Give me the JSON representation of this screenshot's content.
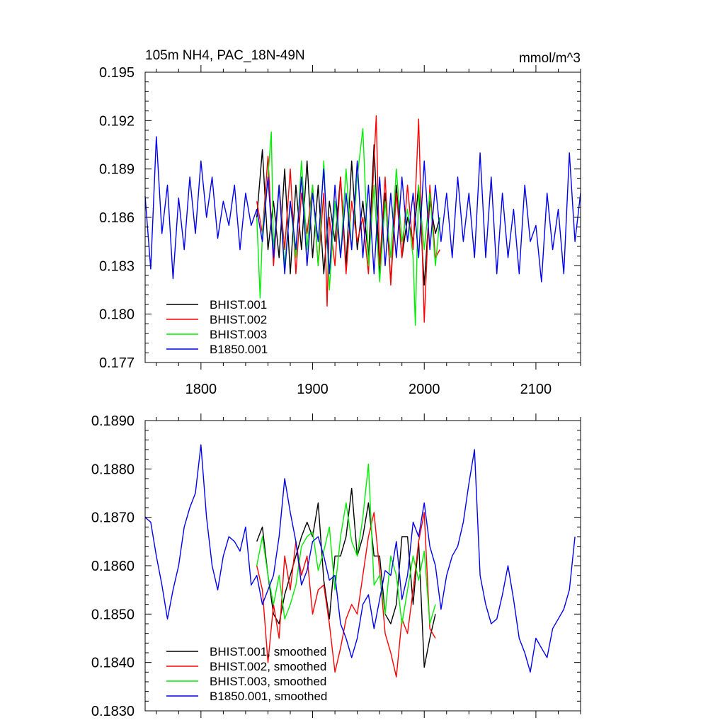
{
  "chart_data": [
    {
      "type": "line",
      "title": "105m NH4, PAC_18N-49N",
      "units": "mmol/m^3",
      "xlabel": "",
      "ylabel": "",
      "xlim": [
        1750,
        2140
      ],
      "ylim": [
        0.177,
        0.195
      ],
      "x_ticks": [
        1800,
        1900,
        2000,
        2100
      ],
      "x_tick_labels": [
        "1800",
        "1900",
        "2000",
        "2100"
      ],
      "y_ticks": [
        0.177,
        0.18,
        0.183,
        0.186,
        0.189,
        0.192,
        0.195
      ],
      "y_tick_labels": [
        "0.177",
        "0.180",
        "0.183",
        "0.186",
        "0.189",
        "0.192",
        "0.195"
      ],
      "grid": false,
      "legend_position": "bottom-left",
      "series": [
        {
          "name": "BHIST.001",
          "color": "#000000",
          "x": [
            1850,
            1855,
            1860,
            1865,
            1870,
            1875,
            1880,
            1885,
            1890,
            1895,
            1900,
            1905,
            1910,
            1915,
            1920,
            1925,
            1930,
            1935,
            1940,
            1945,
            1950,
            1955,
            1960,
            1965,
            1970,
            1975,
            1980,
            1985,
            1990,
            1995,
            2000,
            2005,
            2010,
            2014
          ],
          "y": [
            0.186,
            0.1902,
            0.184,
            0.187,
            0.1835,
            0.189,
            0.1825,
            0.188,
            0.184,
            0.1895,
            0.1835,
            0.188,
            0.1825,
            0.187,
            0.1845,
            0.1885,
            0.183,
            0.1895,
            0.184,
            0.187,
            0.1835,
            0.1905,
            0.1825,
            0.1875,
            0.182,
            0.188,
            0.1835,
            0.186,
            0.1845,
            0.188,
            0.1818,
            0.187,
            0.185,
            0.186
          ]
        },
        {
          "name": "BHIST.002",
          "color": "#ff0000",
          "x": [
            1850,
            1855,
            1860,
            1865,
            1870,
            1875,
            1880,
            1885,
            1890,
            1895,
            1900,
            1905,
            1910,
            1913,
            1915,
            1920,
            1925,
            1930,
            1935,
            1940,
            1945,
            1950,
            1955,
            1957,
            1960,
            1965,
            1970,
            1975,
            1980,
            1985,
            1990,
            1995,
            2000,
            2005,
            2010,
            2014
          ],
          "y": [
            0.187,
            0.185,
            0.1898,
            0.183,
            0.188,
            0.184,
            0.189,
            0.1825,
            0.1875,
            0.185,
            0.188,
            0.183,
            0.1875,
            0.1805,
            0.186,
            0.183,
            0.1885,
            0.1825,
            0.187,
            0.1845,
            0.186,
            0.1825,
            0.1895,
            0.1923,
            0.183,
            0.1885,
            0.1818,
            0.1875,
            0.1835,
            0.188,
            0.184,
            0.1921,
            0.1795,
            0.188,
            0.1835,
            0.184
          ]
        },
        {
          "name": "BHIST.003",
          "color": "#00ee00",
          "x": [
            1850,
            1853,
            1855,
            1860,
            1863,
            1865,
            1870,
            1875,
            1880,
            1885,
            1890,
            1895,
            1900,
            1905,
            1910,
            1915,
            1920,
            1925,
            1930,
            1935,
            1940,
            1945,
            1950,
            1955,
            1960,
            1965,
            1970,
            1975,
            1980,
            1985,
            1990,
            1992,
            1995,
            2000,
            2005,
            2010,
            2014
          ],
          "y": [
            0.186,
            0.181,
            0.185,
            0.1885,
            0.1913,
            0.184,
            0.188,
            0.183,
            0.187,
            0.1835,
            0.1895,
            0.184,
            0.188,
            0.183,
            0.1895,
            0.1815,
            0.187,
            0.1835,
            0.189,
            0.184,
            0.1885,
            0.1915,
            0.183,
            0.188,
            0.182,
            0.187,
            0.1835,
            0.189,
            0.1845,
            0.1865,
            0.1835,
            0.1793,
            0.188,
            0.184,
            0.1875,
            0.183,
            0.186
          ]
        },
        {
          "name": "B1850.001",
          "color": "#0000ee",
          "x": [
            1750,
            1755,
            1760,
            1765,
            1770,
            1775,
            1780,
            1785,
            1790,
            1795,
            1800,
            1805,
            1810,
            1815,
            1820,
            1825,
            1830,
            1835,
            1840,
            1845,
            1850,
            1855,
            1860,
            1865,
            1870,
            1875,
            1880,
            1885,
            1890,
            1895,
            1900,
            1905,
            1910,
            1915,
            1920,
            1925,
            1930,
            1935,
            1940,
            1945,
            1950,
            1955,
            1960,
            1965,
            1970,
            1975,
            1980,
            1985,
            1990,
            1995,
            2000,
            2005,
            2010,
            2015,
            2020,
            2025,
            2030,
            2035,
            2040,
            2045,
            2050,
            2055,
            2060,
            2065,
            2070,
            2075,
            2080,
            2085,
            2090,
            2095,
            2100,
            2105,
            2110,
            2115,
            2120,
            2125,
            2130,
            2135,
            2140
          ],
          "y": [
            0.1873,
            0.1828,
            0.191,
            0.185,
            0.188,
            0.1822,
            0.1872,
            0.184,
            0.1885,
            0.185,
            0.1895,
            0.186,
            0.1885,
            0.1847,
            0.187,
            0.1855,
            0.188,
            0.184,
            0.1875,
            0.1855,
            0.1865,
            0.1845,
            0.1885,
            0.1835,
            0.188,
            0.1825,
            0.187,
            0.184,
            0.1885,
            0.183,
            0.1875,
            0.1845,
            0.189,
            0.1825,
            0.188,
            0.1835,
            0.1875,
            0.184,
            0.1895,
            0.1835,
            0.188,
            0.1825,
            0.1885,
            0.183,
            0.1875,
            0.1835,
            0.1885,
            0.1845,
            0.1875,
            0.1835,
            0.1895,
            0.184,
            0.188,
            0.1845,
            0.1875,
            0.1835,
            0.1885,
            0.1845,
            0.1875,
            0.1835,
            0.19,
            0.1835,
            0.1885,
            0.1825,
            0.1875,
            0.1835,
            0.1865,
            0.1825,
            0.188,
            0.1845,
            0.1855,
            0.182,
            0.1875,
            0.184,
            0.1865,
            0.1825,
            0.19,
            0.1845,
            0.1875
          ]
        }
      ]
    },
    {
      "type": "line",
      "title": "",
      "units": "",
      "xlabel": "",
      "ylabel": "",
      "xlim": [
        1750,
        2140
      ],
      "ylim": [
        0.183,
        0.189
      ],
      "x_ticks": [
        1800,
        1900,
        2000,
        2100
      ],
      "y_ticks": [
        0.183,
        0.184,
        0.185,
        0.186,
        0.187,
        0.188,
        0.189
      ],
      "y_tick_labels": [
        "0.1830",
        "0.1840",
        "0.1850",
        "0.1860",
        "0.1870",
        "0.1880",
        "0.1890"
      ],
      "grid": false,
      "legend_position": "bottom-left",
      "series": [
        {
          "name": "BHIST.001, smoothed",
          "color": "#000000",
          "x": [
            1850,
            1855,
            1860,
            1865,
            1870,
            1875,
            1880,
            1885,
            1890,
            1895,
            1900,
            1905,
            1910,
            1915,
            1920,
            1925,
            1930,
            1935,
            1940,
            1945,
            1950,
            1955,
            1960,
            1965,
            1970,
            1975,
            1980,
            1985,
            1990,
            1995,
            2000,
            2005,
            2010
          ],
          "y": [
            0.1865,
            0.1868,
            0.1858,
            0.185,
            0.1848,
            0.1854,
            0.1858,
            0.1862,
            0.1866,
            0.1869,
            0.1866,
            0.1873,
            0.1857,
            0.1849,
            0.1862,
            0.1862,
            0.1866,
            0.1876,
            0.1862,
            0.1866,
            0.1873,
            0.1862,
            0.1862,
            0.185,
            0.1848,
            0.1852,
            0.1866,
            0.1866,
            0.1852,
            0.1865,
            0.1839,
            0.1845,
            0.185
          ]
        },
        {
          "name": "BHIST.002, smoothed",
          "color": "#ff0000",
          "x": [
            1850,
            1855,
            1860,
            1865,
            1870,
            1875,
            1880,
            1885,
            1890,
            1895,
            1900,
            1905,
            1910,
            1915,
            1920,
            1925,
            1930,
            1935,
            1940,
            1945,
            1950,
            1955,
            1960,
            1965,
            1970,
            1975,
            1980,
            1985,
            1990,
            1995,
            2000,
            2005,
            2010
          ],
          "y": [
            0.186,
            0.1855,
            0.184,
            0.1852,
            0.1845,
            0.1862,
            0.1855,
            0.1865,
            0.1858,
            0.1862,
            0.185,
            0.1855,
            0.1856,
            0.1848,
            0.1838,
            0.1843,
            0.1849,
            0.1852,
            0.185,
            0.1858,
            0.1866,
            0.1871,
            0.1859,
            0.1846,
            0.1842,
            0.1837,
            0.1849,
            0.1846,
            0.1855,
            0.1865,
            0.1871,
            0.1847,
            0.1845
          ]
        },
        {
          "name": "BHIST.003, smoothed",
          "color": "#00ee00",
          "x": [
            1850,
            1855,
            1860,
            1865,
            1870,
            1875,
            1880,
            1885,
            1890,
            1895,
            1900,
            1905,
            1910,
            1915,
            1920,
            1925,
            1930,
            1935,
            1940,
            1945,
            1950,
            1955,
            1960,
            1965,
            1970,
            1975,
            1980,
            1985,
            1990,
            1995,
            2000,
            2005,
            2010
          ],
          "y": [
            0.186,
            0.1866,
            0.1858,
            0.1852,
            0.1858,
            0.1849,
            0.1852,
            0.1856,
            0.1864,
            0.1866,
            0.1867,
            0.1859,
            0.1863,
            0.1868,
            0.1855,
            0.1866,
            0.1873,
            0.1865,
            0.1862,
            0.187,
            0.1881,
            0.1856,
            0.1858,
            0.185,
            0.1862,
            0.1858,
            0.1848,
            0.1855,
            0.1862,
            0.1857,
            0.1863,
            0.1848,
            0.1852
          ]
        },
        {
          "name": "B1850.001, smoothed",
          "color": "#0000ee",
          "x": [
            1750,
            1755,
            1760,
            1765,
            1770,
            1775,
            1780,
            1785,
            1790,
            1795,
            1800,
            1805,
            1810,
            1815,
            1820,
            1825,
            1830,
            1835,
            1840,
            1845,
            1850,
            1855,
            1860,
            1865,
            1870,
            1875,
            1880,
            1885,
            1890,
            1895,
            1900,
            1905,
            1910,
            1915,
            1920,
            1925,
            1930,
            1935,
            1940,
            1945,
            1950,
            1955,
            1960,
            1965,
            1970,
            1975,
            1980,
            1985,
            1990,
            1995,
            2000,
            2005,
            2010,
            2015,
            2020,
            2025,
            2030,
            2035,
            2040,
            2045,
            2050,
            2055,
            2060,
            2065,
            2070,
            2075,
            2080,
            2085,
            2090,
            2095,
            2100,
            2105,
            2110,
            2115,
            2120,
            2125,
            2130,
            2135
          ],
          "y": [
            0.187,
            0.1869,
            0.1862,
            0.1856,
            0.1849,
            0.1855,
            0.186,
            0.1868,
            0.1872,
            0.1875,
            0.1885,
            0.187,
            0.186,
            0.1855,
            0.1862,
            0.1866,
            0.1865,
            0.1863,
            0.1868,
            0.1856,
            0.1858,
            0.1852,
            0.1855,
            0.1858,
            0.1866,
            0.1878,
            0.1871,
            0.1865,
            0.1856,
            0.1859,
            0.1865,
            0.1866,
            0.1862,
            0.1857,
            0.1858,
            0.1848,
            0.1845,
            0.1841,
            0.1845,
            0.1852,
            0.1854,
            0.1847,
            0.1853,
            0.1859,
            0.1858,
            0.1865,
            0.1853,
            0.1858,
            0.1869,
            0.1866,
            0.1873,
            0.1864,
            0.186,
            0.1851,
            0.1858,
            0.1862,
            0.1864,
            0.1869,
            0.1877,
            0.1884,
            0.1858,
            0.1852,
            0.1848,
            0.1849,
            0.1854,
            0.186,
            0.1853,
            0.1845,
            0.1842,
            0.1838,
            0.1845,
            0.1843,
            0.1841,
            0.1847,
            0.1849,
            0.1851,
            0.1855,
            0.1866
          ]
        }
      ]
    }
  ]
}
